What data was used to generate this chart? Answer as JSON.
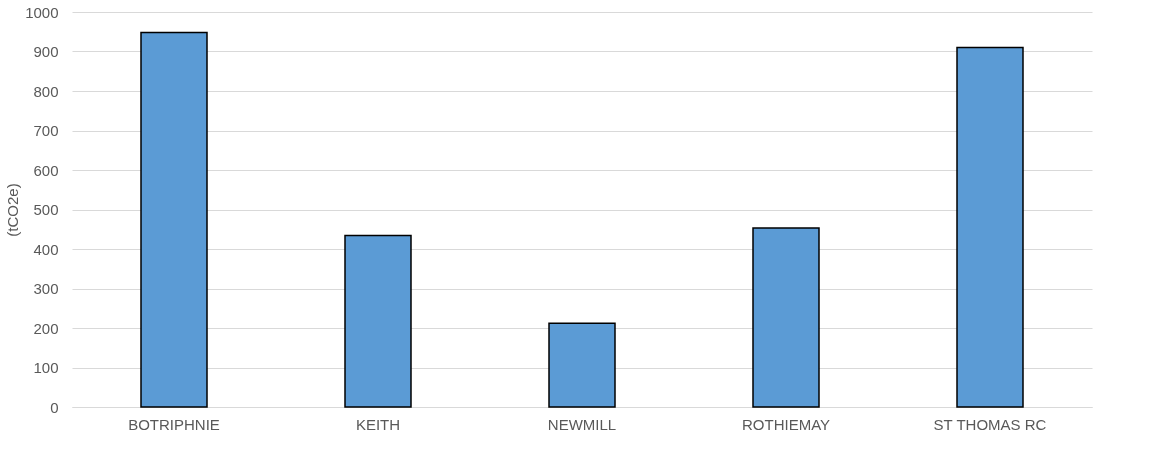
{
  "chart_data": {
    "type": "bar",
    "ylabel": "(tCO2e)",
    "categories": [
      "BOTRIPHNIE",
      "KEITH",
      "NEWMILL",
      "ROTHIEMAY",
      "ST THOMAS RC"
    ],
    "values": [
      948,
      434,
      212,
      453,
      910
    ],
    "color": "#5b9bd5",
    "ylim": [
      0,
      1000
    ],
    "yticks": [
      0,
      100,
      200,
      300,
      400,
      500,
      600,
      700,
      800,
      900,
      1000
    ],
    "grid": "y"
  }
}
